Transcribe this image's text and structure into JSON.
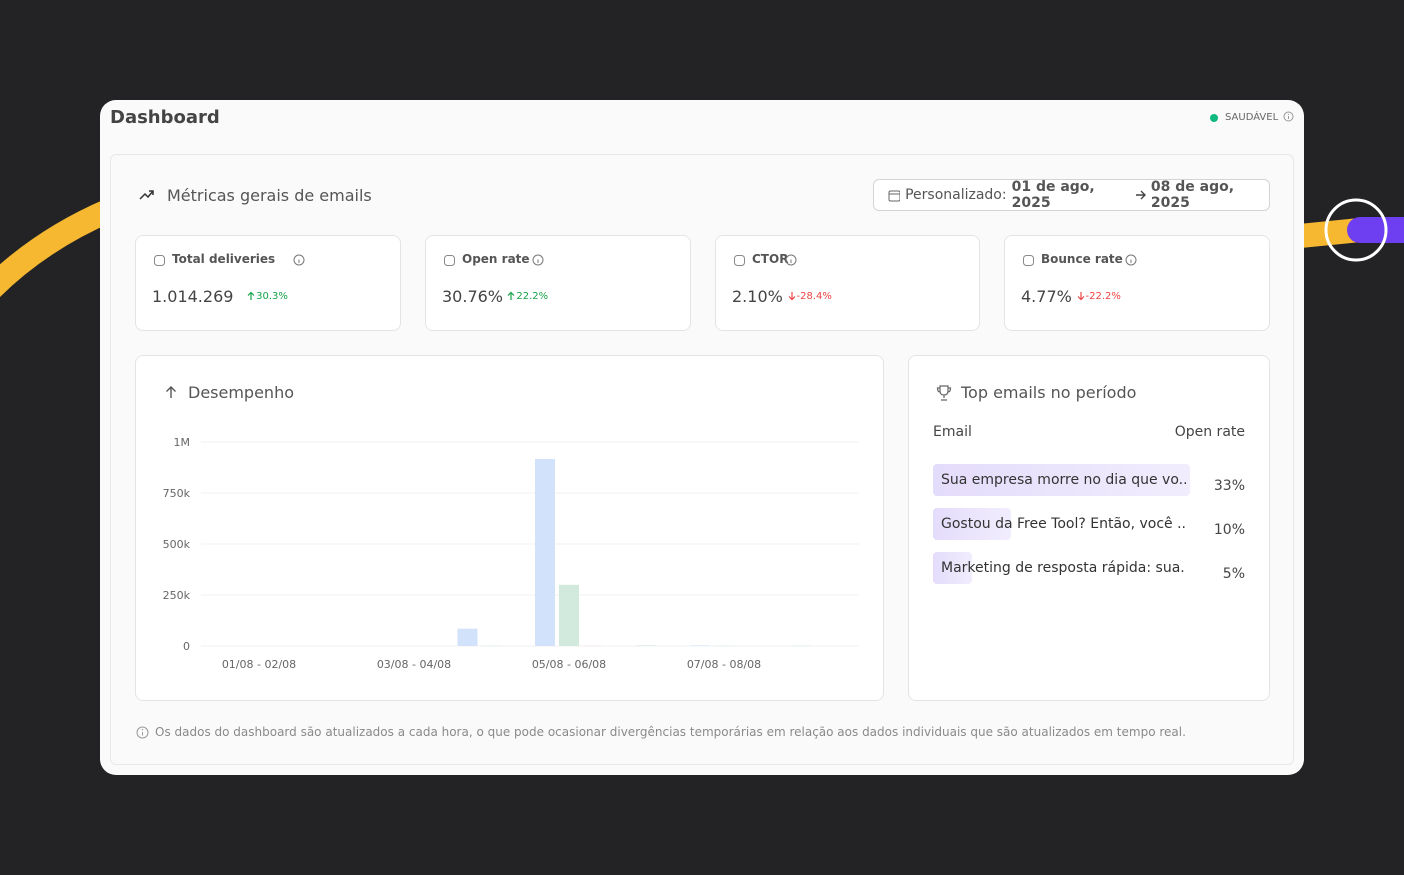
{
  "header": {
    "title": "Dashboard",
    "status": "SAUDÁVEL"
  },
  "section": {
    "title": "Métricas gerais de emails",
    "date_range": {
      "prefix": "Personalizado:",
      "start": "01 de ago, 2025",
      "end": "08 de ago, 2025"
    }
  },
  "metrics": [
    {
      "label": "Total deliveries",
      "value": "1.014.269",
      "change": "30.3%",
      "trend": "up"
    },
    {
      "label": "Open rate",
      "value": "30.76%",
      "change": "22.2%",
      "trend": "up"
    },
    {
      "label": "CTOR",
      "value": "2.10%",
      "change": "-28.4%",
      "trend": "down"
    },
    {
      "label": "Bounce rate",
      "value": "4.77%",
      "change": "-22.2%",
      "trend": "down"
    }
  ],
  "chart_data": {
    "type": "bar",
    "title": "Desempenho",
    "categories": [
      "01/08 - 02/08",
      null,
      "03/08 - 04/08",
      null,
      "05/08 - 06/08",
      null,
      "07/08 - 08/08",
      null
    ],
    "series": [
      {
        "color": "#d3e2fb",
        "values": [
          0,
          0,
          0,
          85000,
          917000,
          0,
          3000,
          0
        ]
      },
      {
        "color": "#d2eadd",
        "values": [
          0,
          0,
          0,
          2000,
          300000,
          3000,
          2000,
          2000
        ]
      },
      {
        "color": "#f1dde5",
        "values": [
          0,
          0,
          0,
          0,
          2000,
          0,
          0,
          0
        ]
      }
    ],
    "ylim": [
      0,
      1000000
    ],
    "yticks": [
      0,
      {
        "value": 250000,
        "label": "250k"
      },
      {
        "value": 500000,
        "label": "500k"
      },
      {
        "value": 750000,
        "label": "750k"
      },
      {
        "value": 1000000,
        "label": "1M"
      }
    ],
    "grid": true
  },
  "top_emails": {
    "title": "Top emails no período",
    "columns": [
      "Email",
      "Open rate"
    ],
    "emails": [
      "Sua empresa morre no dia que vo...",
      "Gostou da Free Tool? Então, você ...",
      "Marketing de resposta rápida: sua..."
    ],
    "values": [
      33,
      10,
      5
    ],
    "value_labels": [
      "33%",
      "10%",
      "5%"
    ],
    "color": "#e4dcfb"
  },
  "footnote": "Os dados do dashboard são atualizados a cada hora, o que pode ocasionar divergências temporárias em relação aos dados individuais que são atualizados em tempo real."
}
